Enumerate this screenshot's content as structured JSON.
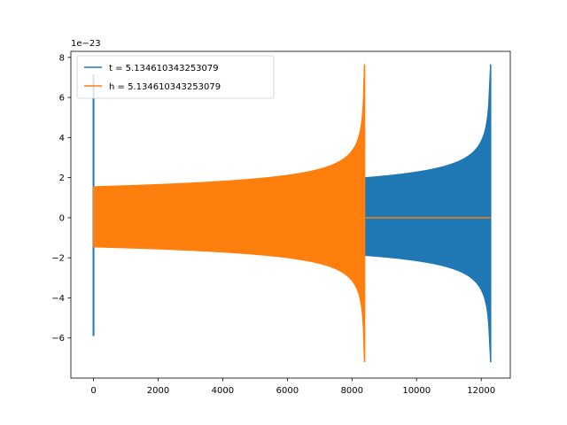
{
  "chart_data": {
    "type": "line",
    "title": "",
    "xlabel": "",
    "ylabel": "",
    "y_offset_text": "1e−23",
    "xlim": [
      -700,
      12900
    ],
    "ylim": [
      -8.0,
      8.3
    ],
    "x_ticks": [
      0,
      2000,
      4000,
      6000,
      8000,
      10000,
      12000
    ],
    "x_tick_labels": [
      "0",
      "2000",
      "4000",
      "6000",
      "8000",
      "10000",
      "12000"
    ],
    "y_ticks": [
      -6,
      -4,
      -2,
      0,
      2,
      4,
      6,
      8
    ],
    "y_tick_labels": [
      "−6",
      "−4",
      "−2",
      "0",
      "2",
      "4",
      "6",
      "8"
    ],
    "grid": false,
    "legend_position": "upper-left",
    "series": [
      {
        "name": "t = 5.134610343253079",
        "color": "#1f77b4",
        "description": "oscillating chirp signal with growing envelope",
        "initial_spike": {
          "x": 0,
          "y_max": 7.15,
          "y_min": -5.9
        },
        "x_start": 0,
        "x_end": 12290,
        "envelope_start": 1.5,
        "envelope_at_8400": 1.82,
        "peak_max": 7.65,
        "peak_min": -7.2,
        "after_end_value": 0
      },
      {
        "name": "h = 5.134610343253079",
        "color": "#ff7f0e",
        "description": "oscillating chirp signal with growing envelope, zero after merger",
        "x_start": 0,
        "x_end": 8390,
        "envelope_start": 1.55,
        "envelope_at_6000": 2.0,
        "peak_max": 7.65,
        "peak_min": -7.2,
        "zero_segment": [
          8420,
          12290
        ]
      }
    ]
  }
}
